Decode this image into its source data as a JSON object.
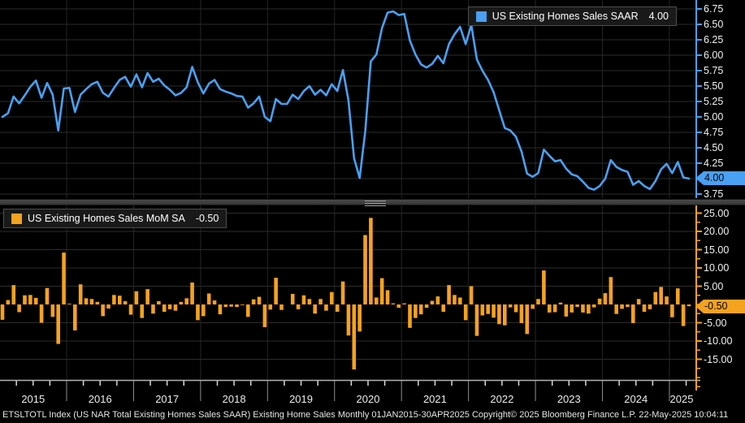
{
  "colors": {
    "blue": "#4AA0F2",
    "orange": "#F5A21E",
    "background": "#000000",
    "grid": "#2d2d2d",
    "axis_band_line": "#909090",
    "x_axis_line": "#b5b5b5",
    "text": "#ffffff"
  },
  "top_panel": {
    "legend_label": "US Existing Homes Sales SAAR",
    "legend_value": "4.00",
    "badge_value": "4.00",
    "y_tick_labels": [
      "6.75",
      "6.50",
      "6.25",
      "6.00",
      "5.75",
      "5.50",
      "5.25",
      "5.00",
      "4.75",
      "4.50",
      "4.25",
      "4.00",
      "3.75"
    ]
  },
  "bottom_panel": {
    "legend_label": "US Existing Homes Sales MoM SA",
    "legend_value": "-0.50",
    "badge_value": "-0.50",
    "y_tick_labels": [
      "25.00",
      "20.00",
      "15.00",
      "10.00",
      "5.00",
      "-5.00",
      "-10.00",
      "-15.00"
    ]
  },
  "x_axis": {
    "year_labels": [
      "2015",
      "2016",
      "2017",
      "2018",
      "2019",
      "2020",
      "2021",
      "2022",
      "2023",
      "2024",
      "2025"
    ]
  },
  "footer": {
    "text": "ETSLTOTL Index (US NAR Total Existing Homes Sales SAAR) Existing Home Sales  Monthly 01JAN2015-30APR2025 Copyright© 2025 Bloomberg Finance L.P. 22-May-2025 10:04:11"
  },
  "chart_data": [
    {
      "type": "line",
      "name": "US Existing Homes Sales SAAR",
      "frequency": "Monthly",
      "x_range": "Jan 2015 - Apr 2025",
      "ylim": [
        3.75,
        6.75
      ],
      "y_tick_step": 0.25,
      "grid": true,
      "legend_position": "top-right",
      "color": "#4AA0F2",
      "current_value": 4.0,
      "values": [
        5.0,
        5.06,
        5.33,
        5.22,
        5.35,
        5.49,
        5.59,
        5.31,
        5.55,
        5.36,
        4.78,
        5.46,
        5.47,
        5.08,
        5.36,
        5.45,
        5.53,
        5.57,
        5.39,
        5.33,
        5.47,
        5.6,
        5.65,
        5.49,
        5.69,
        5.48,
        5.71,
        5.57,
        5.62,
        5.51,
        5.44,
        5.35,
        5.39,
        5.48,
        5.81,
        5.56,
        5.38,
        5.54,
        5.6,
        5.45,
        5.41,
        5.38,
        5.34,
        5.33,
        5.15,
        5.22,
        5.33,
        5.0,
        4.93,
        5.29,
        5.21,
        5.21,
        5.36,
        5.29,
        5.42,
        5.5,
        5.36,
        5.44,
        5.35,
        5.53,
        5.42,
        5.76,
        5.27,
        4.33,
        4.01,
        4.77,
        5.9,
        6.01,
        6.44,
        6.69,
        6.71,
        6.65,
        6.67,
        6.24,
        6.01,
        5.85,
        5.8,
        5.86,
        5.99,
        5.87,
        6.18,
        6.34,
        6.46,
        6.18,
        6.49,
        5.93,
        5.75,
        5.6,
        5.4,
        5.11,
        4.82,
        4.78,
        4.68,
        4.44,
        4.08,
        4.03,
        4.09,
        4.47,
        4.37,
        4.28,
        4.3,
        4.16,
        4.07,
        4.04,
        3.95,
        3.85,
        3.82,
        3.88,
        4.0,
        4.3,
        4.19,
        4.14,
        4.11,
        3.9,
        3.96,
        3.88,
        3.83,
        3.96,
        4.15,
        4.24,
        4.09,
        4.27,
        4.02,
        4.0
      ]
    },
    {
      "type": "bar",
      "name": "US Existing Homes Sales MoM SA",
      "frequency": "Monthly",
      "x_range": "Jan 2015 - Apr 2025",
      "ylim": [
        -22.5,
        27.5
      ],
      "y_tick_step": 2.5,
      "y_label_step": 5,
      "grid": true,
      "legend_position": "top-left",
      "color": "#F5A21E",
      "current_value": -0.5,
      "values": [
        -4.2,
        1.2,
        5.3,
        -2.1,
        2.5,
        2.6,
        1.8,
        -5.0,
        4.5,
        -3.4,
        -10.8,
        14.2,
        0.2,
        -7.1,
        5.5,
        1.7,
        1.5,
        0.7,
        -3.2,
        -1.1,
        2.6,
        2.4,
        0.9,
        -2.8,
        3.6,
        -3.7,
        4.2,
        -2.5,
        0.9,
        -2.0,
        -1.3,
        -1.7,
        0.7,
        1.7,
        6.0,
        -4.3,
        -3.2,
        3.0,
        1.1,
        -2.7,
        -0.7,
        -0.6,
        -0.7,
        -0.2,
        -3.4,
        1.4,
        2.1,
        -6.2,
        -1.4,
        7.3,
        -1.5,
        0.0,
        2.9,
        -1.3,
        2.5,
        1.5,
        -2.5,
        1.5,
        -1.7,
        3.4,
        -2.0,
        6.3,
        -8.5,
        -17.8,
        -7.4,
        19.0,
        23.7,
        1.9,
        7.2,
        3.9,
        0.3,
        -0.9,
        0.3,
        -6.4,
        -3.7,
        -2.7,
        -0.9,
        1.0,
        2.2,
        -2.0,
        5.3,
        2.6,
        1.9,
        -4.3,
        5.0,
        -8.6,
        -3.0,
        -2.6,
        -3.6,
        -5.4,
        -5.7,
        -0.8,
        -2.1,
        -5.1,
        -8.1,
        -1.2,
        1.5,
        9.3,
        -2.2,
        -2.1,
        0.5,
        -3.3,
        -2.2,
        -0.7,
        -2.2,
        -2.5,
        -0.8,
        1.6,
        3.1,
        7.5,
        -2.6,
        -1.2,
        -0.7,
        -5.1,
        1.5,
        -2.0,
        -1.3,
        3.4,
        4.8,
        2.2,
        -3.5,
        4.4,
        -5.9,
        -0.5
      ]
    }
  ]
}
